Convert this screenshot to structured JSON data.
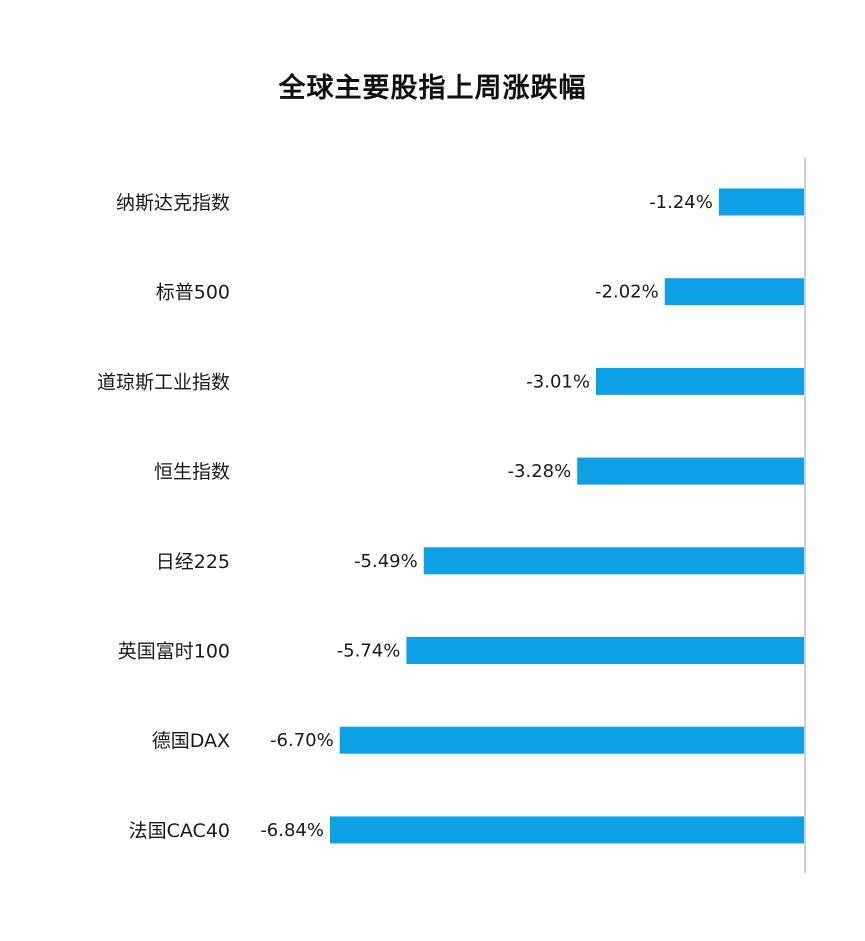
{
  "chart_data": {
    "type": "bar",
    "orientation": "horizontal",
    "title": "全球主要股指上周涨跌幅",
    "categories": [
      "纳斯达克指数",
      "标普500",
      "道琼斯工业指数",
      "恒生指数",
      "日经225",
      "英国富时100",
      "德国DAX",
      "法国CAC40"
    ],
    "values": [
      -1.24,
      -2.02,
      -3.01,
      -3.28,
      -5.49,
      -5.74,
      -6.7,
      -6.84
    ],
    "data_labels": [
      "-1.24%",
      "-2.02%",
      "-3.01%",
      "-3.28%",
      "-5.49%",
      "-5.74%",
      "-6.70%",
      "-6.84%"
    ],
    "xlim": [
      -6.84,
      0
    ],
    "bar_color": "#0ea0e4",
    "axis_color": "#d0d0d0",
    "grid": false,
    "legend": "none"
  }
}
